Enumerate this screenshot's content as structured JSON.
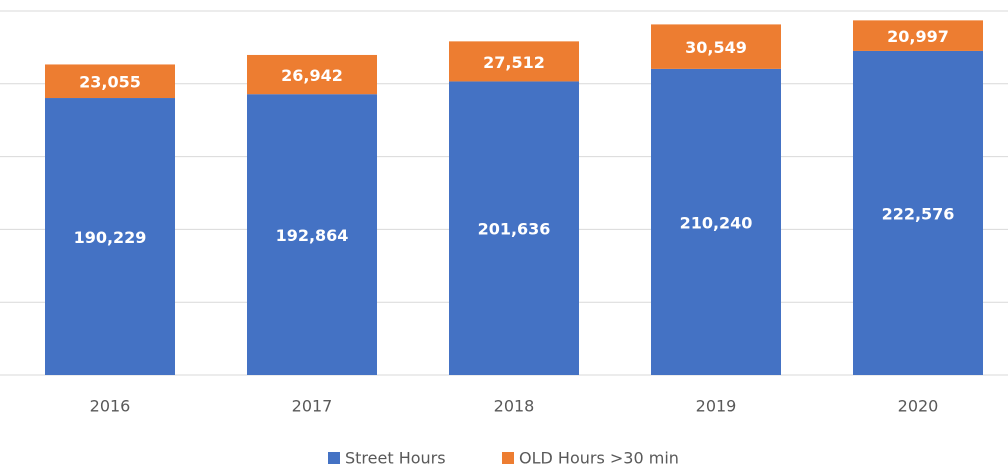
{
  "chart_data": {
    "type": "stacked_bar",
    "categories": [
      "2016",
      "2017",
      "2018",
      "2019",
      "2020"
    ],
    "series": [
      {
        "name": "Street Hours",
        "color": "#4472c4",
        "values": [
          190229,
          192864,
          201636,
          210240,
          222576
        ],
        "value_labels": [
          "190,229",
          "192,864",
          "201,636",
          "210,240",
          "222,576"
        ]
      },
      {
        "name": "OLD Hours >30 min",
        "color": "#ed7d31",
        "values": [
          23055,
          26942,
          27512,
          30549,
          20997
        ],
        "value_labels": [
          "23,055",
          "26,942",
          "27,512",
          "30,549",
          "20,997"
        ]
      }
    ],
    "ylim": [
      0,
      250000
    ],
    "yticks": [
      0,
      50000,
      100000,
      150000,
      200000,
      250000
    ],
    "grid": true,
    "legend": "bottom"
  }
}
